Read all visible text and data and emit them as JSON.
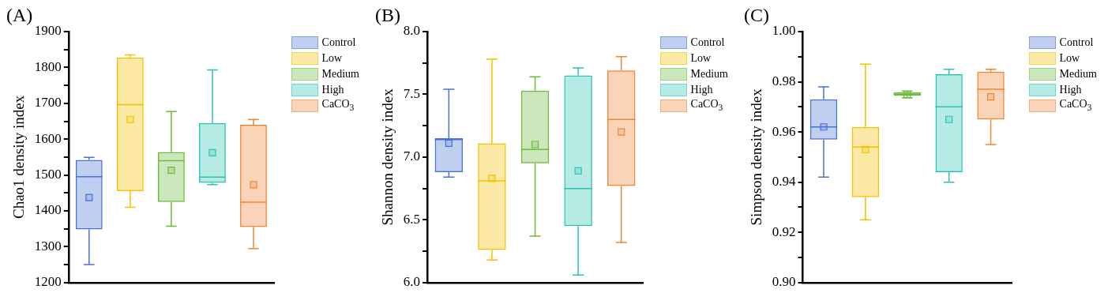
{
  "chart_data": [
    {
      "type": "box",
      "title": "(A)",
      "ylabel": "Chao1 density index",
      "categories": [
        null,
        null,
        null,
        null,
        null
      ],
      "ylim": [
        1200,
        1900
      ],
      "yticks": [
        1200,
        {
          "value": 1250,
          "label": null
        },
        1300,
        {
          "value": 1350,
          "label": null
        },
        1400,
        {
          "value": 1450,
          "label": null
        },
        1500,
        {
          "value": 1550,
          "label": null
        },
        1600,
        {
          "value": 1650,
          "label": null
        },
        1700,
        {
          "value": 1750,
          "label": null
        },
        1800,
        {
          "value": 1850,
          "label": null
        },
        1900
      ],
      "grid": false,
      "legend": "top right",
      "marker": "square",
      "tick_labels": "y",
      "series": [
        {
          "name": "Control",
          "color": "#4a72d4",
          "boxes": [
            {
              "low": 1250,
              "q1": 1348,
              "median": 1495,
              "q3": 1542,
              "high": 1549,
              "mean": 1437
            },
            null,
            null,
            null,
            null
          ]
        },
        {
          "name": "Low",
          "color": "#f5c000",
          "boxes": [
            null,
            {
              "low": 1410,
              "q1": 1455,
              "median": 1696,
              "q3": 1828,
              "high": 1835,
              "mean": 1655
            },
            null,
            null,
            null
          ]
        },
        {
          "name": "Medium",
          "color": "#6dbb3c",
          "boxes": [
            null,
            null,
            {
              "low": 1357,
              "q1": 1425,
              "median": 1540,
              "q3": 1564,
              "high": 1677,
              "mean": 1513
            },
            null,
            null
          ]
        },
        {
          "name": "High",
          "color": "#2cc3b4",
          "boxes": [
            null,
            null,
            null,
            {
              "low": 1473,
              "q1": 1478,
              "median": 1494,
              "q3": 1645,
              "high": 1793,
              "mean": 1562
            },
            null
          ]
        },
        {
          "name": "CaCO$_{3}$",
          "color": "#f08536",
          "boxes": [
            null,
            null,
            null,
            null,
            {
              "low": 1295,
              "q1": 1355,
              "median": 1424,
              "q3": 1640,
              "high": 1655,
              "mean": 1473
            }
          ]
        }
      ]
    },
    {
      "type": "box",
      "title": "(B)",
      "ylabel": "Shannon density index",
      "categories": [
        null,
        null,
        null,
        null,
        null
      ],
      "ylim": [
        6.0,
        8.0
      ],
      "yticks": [
        {
          "value": 6,
          "label": "6.0"
        },
        {
          "value": 6.25,
          "label": null
        },
        6.5,
        {
          "value": 6.75,
          "label": null
        },
        {
          "value": 7,
          "label": "7.0"
        },
        {
          "value": 7.25,
          "label": null
        },
        7.5,
        {
          "value": 7.75,
          "label": null
        },
        {
          "value": 8,
          "label": "8.0"
        }
      ],
      "grid": false,
      "legend": "top right",
      "marker": "square",
      "tick_labels": "y",
      "series": [
        {
          "name": "Control",
          "color": "#4a72d4",
          "boxes": [
            {
              "low": 6.84,
              "q1": 6.88,
              "median": 7.14,
              "q3": 7.15,
              "high": 7.54,
              "mean": 7.11
            },
            null,
            null,
            null,
            null
          ]
        },
        {
          "name": "Low",
          "color": "#f5c000",
          "boxes": [
            null,
            {
              "low": 6.18,
              "q1": 6.26,
              "median": 6.81,
              "q3": 7.11,
              "high": 7.78,
              "mean": 6.83
            },
            null,
            null,
            null
          ]
        },
        {
          "name": "Medium",
          "color": "#6dbb3c",
          "boxes": [
            null,
            null,
            {
              "low": 6.37,
              "q1": 6.95,
              "median": 7.06,
              "q3": 7.53,
              "high": 7.64,
              "mean": 7.1
            },
            null,
            null
          ]
        },
        {
          "name": "High",
          "color": "#2cc3b4",
          "boxes": [
            null,
            null,
            null,
            {
              "low": 6.06,
              "q1": 6.45,
              "median": 6.75,
              "q3": 7.65,
              "high": 7.71,
              "mean": 6.89
            },
            null
          ]
        },
        {
          "name": "CaCO$_{3}$",
          "color": "#f08536",
          "boxes": [
            null,
            null,
            null,
            null,
            {
              "low": 6.32,
              "q1": 6.77,
              "median": 7.3,
              "q3": 7.69,
              "high": 7.8,
              "mean": 7.2
            }
          ]
        }
      ]
    },
    {
      "type": "box",
      "title": "(C)",
      "ylabel": "Simpson density index",
      "categories": [
        null,
        null,
        null,
        null,
        null
      ],
      "ylim": [
        0.9,
        1.0
      ],
      "yticks": [
        {
          "value": 0.9,
          "label": "0.90"
        },
        {
          "value": 0.91,
          "label": null
        },
        0.92,
        {
          "value": 0.93,
          "label": null
        },
        0.94,
        {
          "value": 0.95,
          "label": null
        },
        0.96,
        {
          "value": 0.97,
          "label": null
        },
        0.98,
        {
          "value": 0.99,
          "label": null
        },
        {
          "value": 1.0,
          "label": "1.00"
        }
      ],
      "grid": false,
      "legend": "top right",
      "marker": "square",
      "tick_labels": "y",
      "series": [
        {
          "name": "Control",
          "color": "#4a72d4",
          "boxes": [
            {
              "low": 0.942,
              "q1": 0.957,
              "median": 0.962,
              "q3": 0.973,
              "high": 0.978,
              "mean": 0.962
            },
            null,
            null,
            null,
            null
          ]
        },
        {
          "name": "Low",
          "color": "#f5c000",
          "boxes": [
            null,
            {
              "low": 0.925,
              "q1": 0.934,
              "median": 0.954,
              "q3": 0.962,
              "high": 0.987,
              "mean": 0.953
            },
            null,
            null,
            null
          ]
        },
        {
          "name": "Medium",
          "color": "#6dbb3c",
          "boxes": [
            null,
            null,
            {
              "low": 0.9736,
              "q1": 0.9744,
              "median": 0.9751,
              "q3": 0.9758,
              "high": 0.9763,
              "mean": 0.9749
            },
            null,
            null
          ]
        },
        {
          "name": "High",
          "color": "#2cc3b4",
          "boxes": [
            null,
            null,
            null,
            {
              "low": 0.94,
              "q1": 0.944,
              "median": 0.97,
              "q3": 0.983,
              "high": 0.985,
              "mean": 0.965
            },
            null
          ]
        },
        {
          "name": "CaCO$_{3}$",
          "color": "#f08536",
          "boxes": [
            null,
            null,
            null,
            null,
            {
              "low": 0.955,
              "q1": 0.965,
              "median": 0.977,
              "q3": 0.984,
              "high": 0.985,
              "mean": 0.974
            }
          ]
        }
      ]
    }
  ]
}
